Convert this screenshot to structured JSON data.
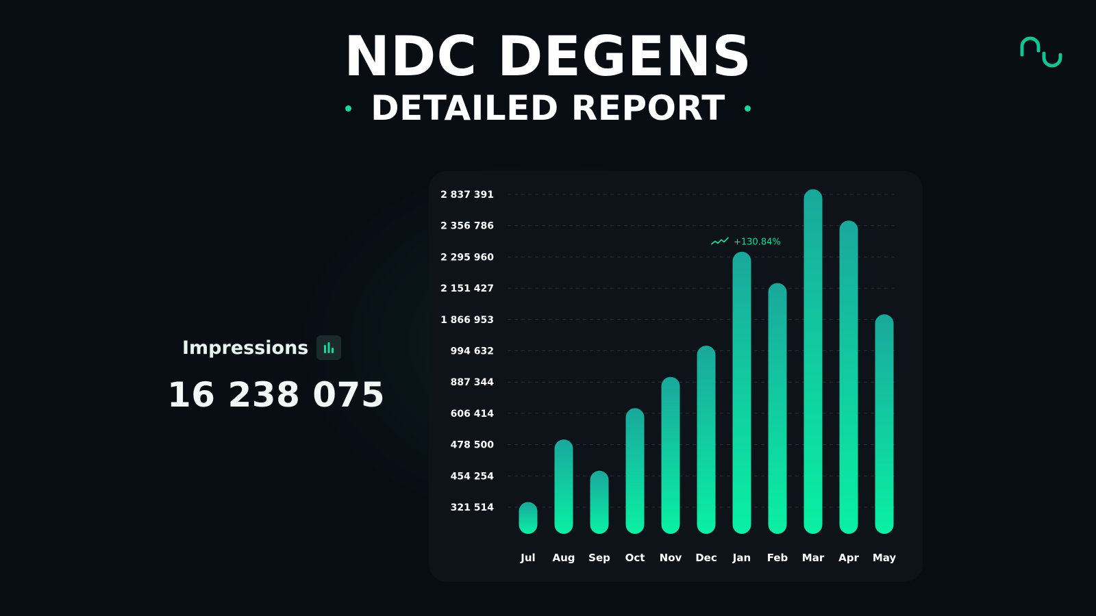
{
  "header": {
    "title": "NDC DEGENS",
    "subtitle": "DETAILED REPORT"
  },
  "logo": {
    "icon": "brand-logo-icon",
    "color": "#15c493"
  },
  "kpi": {
    "label": "Impressions",
    "icon": "bar-chart-icon",
    "value": "16 238 075"
  },
  "colors": {
    "accent": "#17d9a0",
    "bar_top": "#1aa89c",
    "bar_bottom": "#09f0a3",
    "background": "#080d14",
    "card": "#0e1319"
  },
  "chart_data": {
    "type": "bar",
    "title": "",
    "xlabel": "",
    "ylabel": "",
    "categories": [
      "Jul",
      "Aug",
      "Sep",
      "Oct",
      "Nov",
      "Dec",
      "Jan",
      "Feb",
      "Mar",
      "Apr",
      "May"
    ],
    "values": [
      321514,
      478500,
      454254,
      606414,
      887344,
      994632,
      2295960,
      2151427,
      2837391,
      2356786,
      1866953
    ],
    "y_ticks": [
      "2 837 391",
      "2 356 786",
      "2 295 960",
      "2 151 427",
      "1 866 953",
      "994 632",
      "887 344",
      "606 414",
      "478 500",
      "454 254",
      "321 514"
    ],
    "grid": true,
    "y_scale": "categorical-ticks",
    "annotation": {
      "text": "+130.84%",
      "category": "Jan",
      "icon": "trend-up-icon"
    }
  }
}
